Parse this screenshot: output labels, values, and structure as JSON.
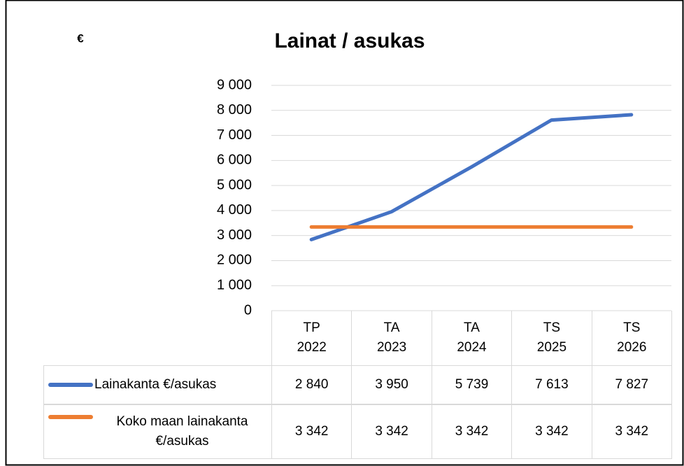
{
  "chart_data": {
    "type": "line",
    "title": "Lainat / asukas",
    "y_label": "€",
    "categories": [
      "TP 2022",
      "TA 2023",
      "TA 2024",
      "TS 2025",
      "TS 2026"
    ],
    "series": [
      {
        "name": "Lainakanta €/asukas",
        "color": "#4472c4",
        "values": [
          2840,
          3950,
          5739,
          7613,
          7827
        ],
        "value_labels": [
          "2 840",
          "3 950",
          "5 739",
          "7 613",
          "7 827"
        ]
      },
      {
        "name": "Koko maan lainakanta €/asukas",
        "color": "#ed7d31",
        "values": [
          3342,
          3342,
          3342,
          3342,
          3342
        ],
        "value_labels": [
          "3 342",
          "3 342",
          "3 342",
          "3 342",
          "3 342"
        ]
      }
    ],
    "ylim": [
      0,
      9000
    ],
    "yticks": [
      0,
      {
        "value": 1000,
        "label": "1 000"
      },
      {
        "value": 2000,
        "label": "2 000"
      },
      {
        "value": 3000,
        "label": "3 000"
      },
      {
        "value": 4000,
        "label": "4 000"
      },
      {
        "value": 5000,
        "label": "5 000"
      },
      {
        "value": 6000,
        "label": "6 000"
      },
      {
        "value": 7000,
        "label": "7 000"
      },
      {
        "value": 8000,
        "label": "8 000"
      },
      {
        "value": 9000,
        "label": "9 000"
      }
    ],
    "grid": true,
    "data_table": true
  }
}
